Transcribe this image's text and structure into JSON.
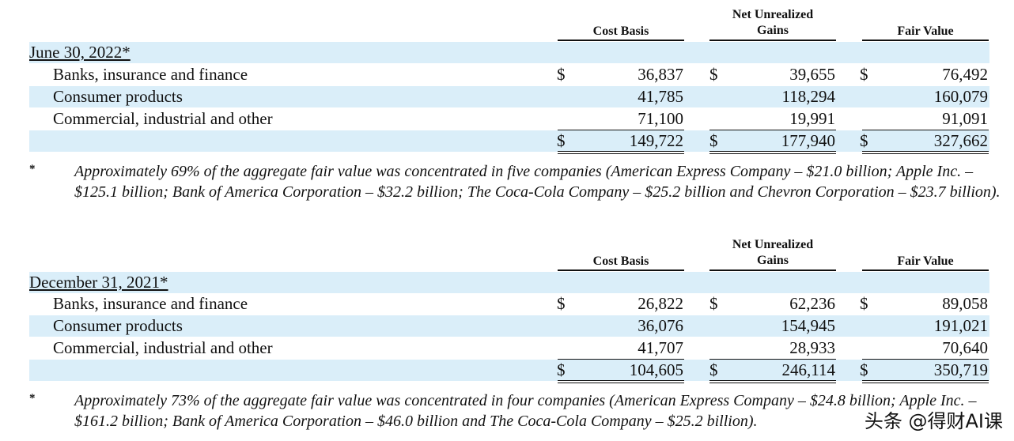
{
  "columns": {
    "cost_basis": "Cost Basis",
    "net_unrealized_1": "Net Unrealized",
    "net_unrealized_2": "Gains",
    "fair_value": "Fair Value"
  },
  "tables": [
    {
      "date": "June 30, 2022*",
      "rows": [
        {
          "label": "Banks, insurance and finance",
          "dollar": "$",
          "cost": "36,837",
          "gains": "39,655",
          "fair": "76,492"
        },
        {
          "label": "Consumer products",
          "dollar": "",
          "cost": "41,785",
          "gains": "118,294",
          "fair": "160,079"
        },
        {
          "label": "Commercial, industrial and other",
          "dollar": "",
          "cost": "71,100",
          "gains": "19,991",
          "fair": "91,091"
        }
      ],
      "total": {
        "dollar": "$",
        "cost": "149,722",
        "gains": "177,940",
        "fair": "327,662"
      },
      "note_mark": "*",
      "note": "Approximately 69% of the aggregate fair value was concentrated in five companies (American Express Company – $21.0 billion; Apple Inc. – $125.1 billion; Bank of America Corporation – $32.2 billion; The Coca-Cola Company – $25.2 billion and Chevron Corporation – $23.7 billion)."
    },
    {
      "date": "December 31, 2021*",
      "rows": [
        {
          "label": "Banks, insurance and finance",
          "dollar": "$",
          "cost": "26,822",
          "gains": "62,236",
          "fair": "89,058"
        },
        {
          "label": "Consumer products",
          "dollar": "",
          "cost": "36,076",
          "gains": "154,945",
          "fair": "191,021"
        },
        {
          "label": "Commercial, industrial and other",
          "dollar": "",
          "cost": "41,707",
          "gains": "28,933",
          "fair": "70,640"
        }
      ],
      "total": {
        "dollar": "$",
        "cost": "104,605",
        "gains": "246,114",
        "fair": "350,719"
      },
      "note_mark": "*",
      "note": "Approximately 73% of the aggregate fair value was concentrated in four companies (American Express Company – $24.8 billion; Apple Inc. – $161.2 billion; Bank of America Corporation – $46.0 billion and The Coca-Cola Company – $25.2 billion)."
    }
  ],
  "watermark": "头条 @得财AI课"
}
